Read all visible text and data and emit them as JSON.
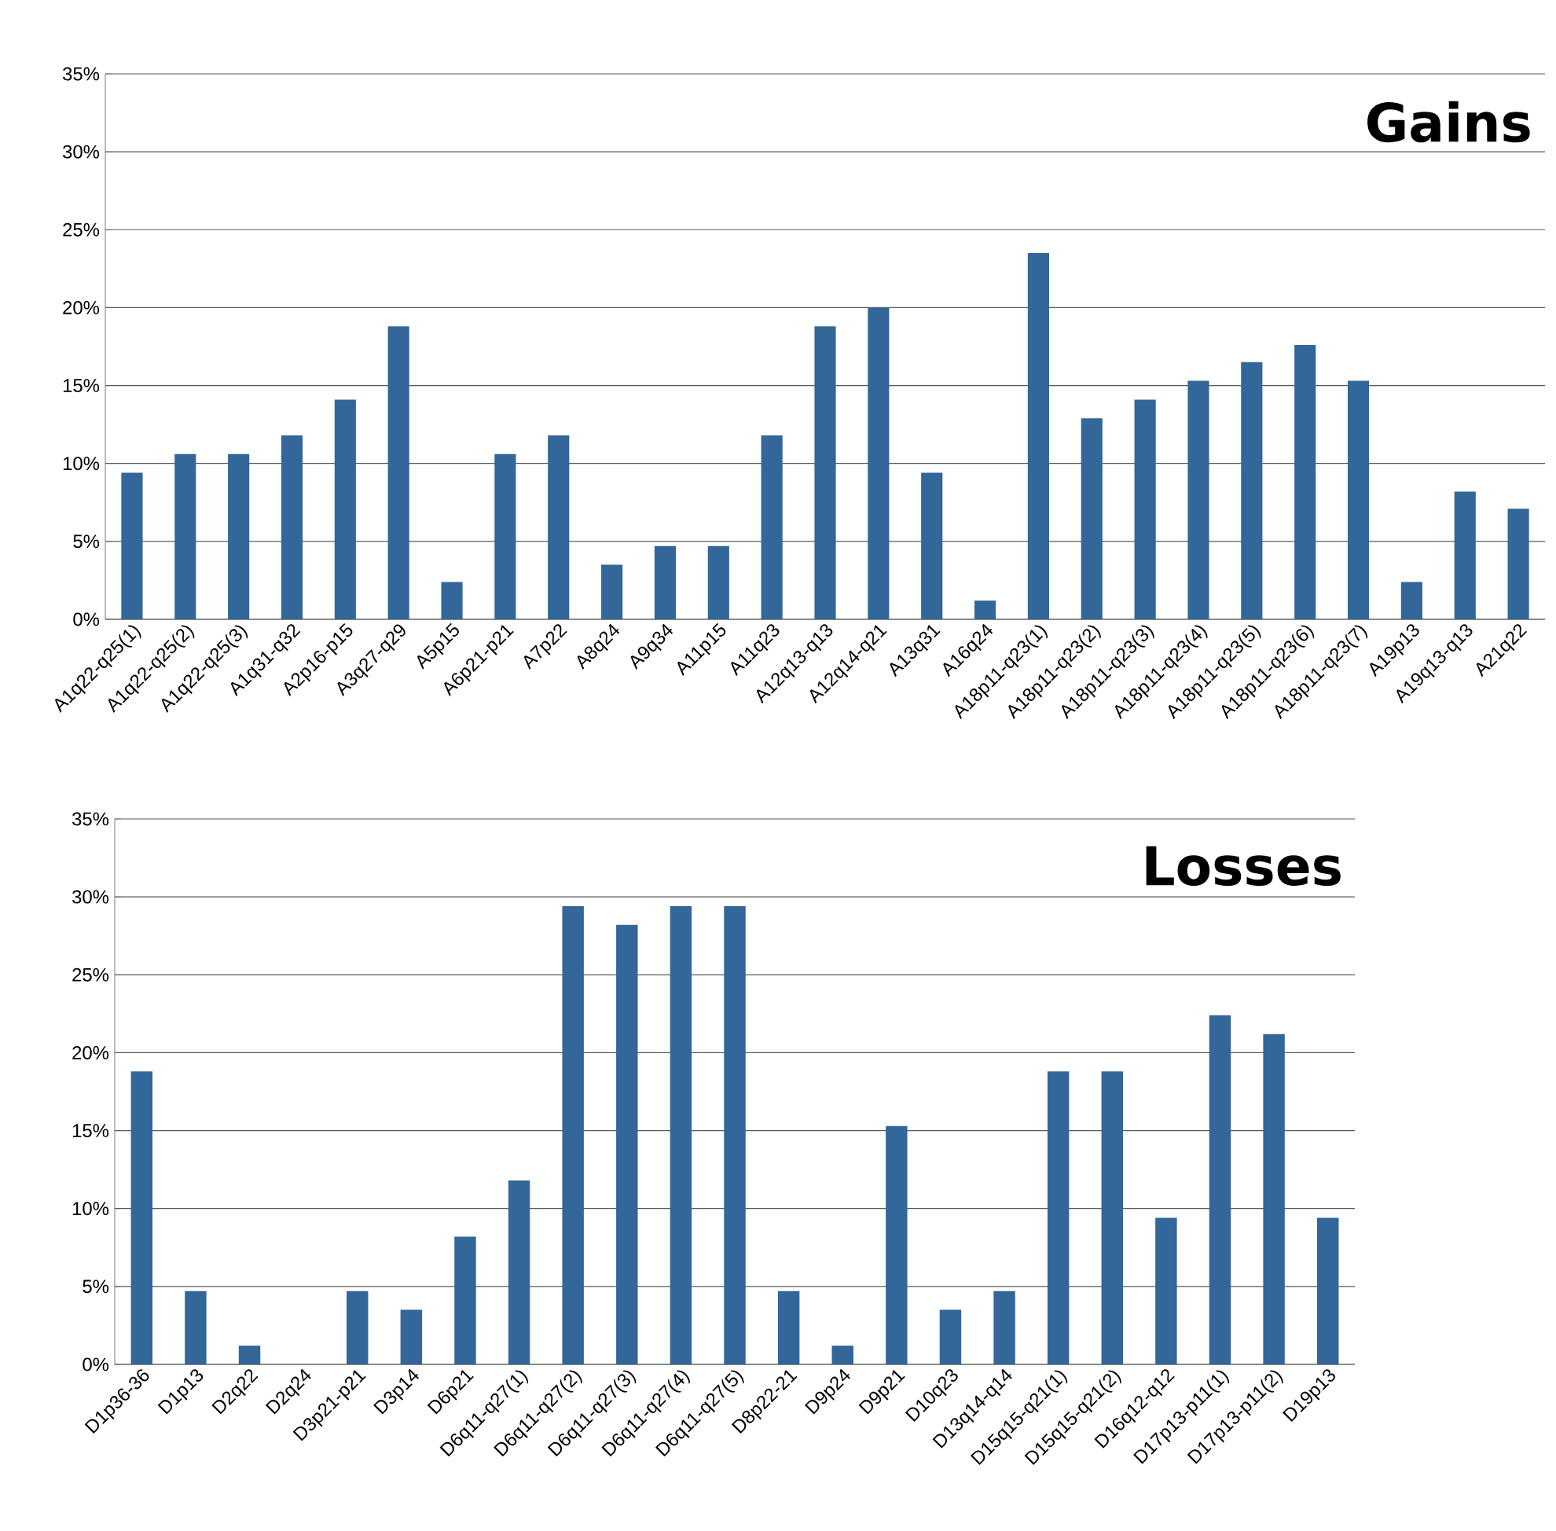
{
  "chart_data": [
    {
      "type": "bar",
      "title": "Gains",
      "categories": [
        "A1q22-q25(1)",
        "A1q22-q25(2)",
        "A1q22-q25(3)",
        "A1q31-q32",
        "A2p16-p15",
        "A3q27-q29",
        "A5p15",
        "A6p21-p21",
        "A7p22",
        "A8q24",
        "A9q34",
        "A11p15",
        "A11q23",
        "A12q13-q13",
        "A12q14-q21",
        "A13q31",
        "A16q24",
        "A18p11-q23(1)",
        "A18p11-q23(2)",
        "A18p11-q23(3)",
        "A18p11-q23(4)",
        "A18p11-q23(5)",
        "A18p11-q23(6)",
        "A18p11-q23(7)",
        "A19p13",
        "A19q13-q13",
        "A21q22"
      ],
      "values": [
        9.4,
        10.6,
        10.6,
        11.8,
        14.1,
        18.8,
        2.4,
        10.6,
        11.8,
        3.5,
        4.7,
        4.7,
        11.8,
        18.8,
        20.0,
        9.4,
        1.2,
        23.5,
        12.9,
        14.1,
        15.3,
        16.5,
        17.6,
        15.3,
        2.4,
        8.2,
        7.1
      ],
      "color": "#336699",
      "ylim": [
        0,
        35
      ],
      "yticks": [
        {
          "value": 0,
          "label": "0%"
        },
        {
          "value": 5,
          "label": "5%"
        },
        {
          "value": 10,
          "label": "10%"
        },
        {
          "value": 15,
          "label": "15%"
        },
        {
          "value": 20,
          "label": "20%"
        },
        {
          "value": 25,
          "label": "25%"
        },
        {
          "value": 30,
          "label": "30%"
        },
        {
          "value": 35,
          "label": "35%"
        }
      ],
      "grid": "y"
    },
    {
      "type": "bar",
      "title": "Losses",
      "categories": [
        "D1p36-36",
        "D1p13",
        "D2q22",
        "D2q24",
        "D3p21-p21",
        "D3p14",
        "D6p21",
        "D6q11-q27(1)",
        "D6q11-q27(2)",
        "D6q11-q27(3)",
        "D6q11-q27(4)",
        "D6q11-q27(5)",
        "D8p22-21",
        "D9p24",
        "D9p21",
        "D10q23",
        "D13q14-q14",
        "D15q15-q21(1)",
        "D15q15-q21(2)",
        "D16q12-q12",
        "D17p13-p11(1)",
        "D17p13-p11(2)",
        "D19p13"
      ],
      "values": [
        18.8,
        4.7,
        1.2,
        0,
        4.7,
        3.5,
        8.2,
        11.8,
        29.4,
        28.2,
        29.4,
        29.4,
        4.7,
        1.2,
        15.3,
        3.5,
        4.7,
        18.8,
        18.8,
        9.4,
        22.4,
        21.2,
        9.4
      ],
      "color": "#336699",
      "ylim": [
        0,
        35
      ],
      "yticks": [
        {
          "value": 0,
          "label": "0%"
        },
        {
          "value": 5,
          "label": "5%"
        },
        {
          "value": 10,
          "label": "10%"
        },
        {
          "value": 15,
          "label": "15%"
        },
        {
          "value": 20,
          "label": "20%"
        },
        {
          "value": 25,
          "label": "25%"
        },
        {
          "value": 30,
          "label": "30%"
        },
        {
          "value": 35,
          "label": "35%"
        }
      ],
      "grid": "y"
    }
  ]
}
